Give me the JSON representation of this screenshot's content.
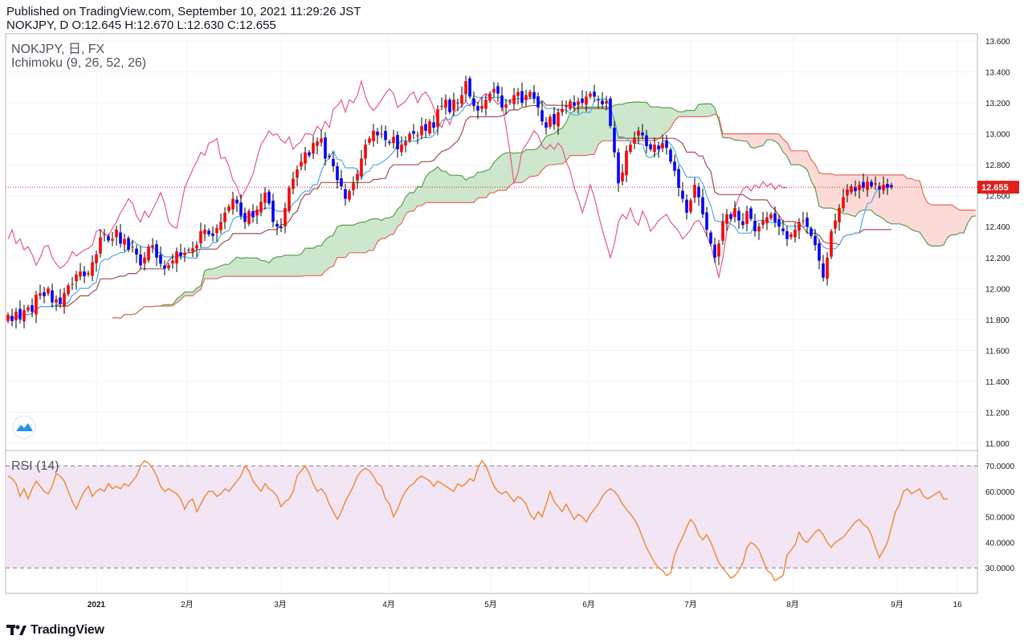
{
  "header": {
    "published": "Published on TradingView.com, September 10, 2021 11:29:26 JST",
    "ohlc": "NOKJPY, D O:12.645 H:12.670 L:12.630 C:12.655"
  },
  "legend": {
    "symbol": "NOKJPY, 日, FX",
    "indicator": "Ichimoku (9, 26, 52, 26)",
    "rsi": "RSI (14)"
  },
  "brand": {
    "name": "TradingView"
  },
  "colors": {
    "up": "#ff0000",
    "down": "#0000ff",
    "tenkan": "#4ea8e8",
    "kijun": "#a0504c",
    "chikou": "#e8578a",
    "spanA": "#57a14a",
    "spanB": "#e96a5e",
    "cloudUp": "#c3e3c3",
    "cloudDown": "#fbd3d0",
    "rsi": "#f08c3c",
    "rsiBand": "#f2e6f5",
    "lastPrice": "#e0201e"
  },
  "chart_data": [
    {
      "type": "candlestick",
      "title": "NOKJPY, 日, FX",
      "subtitle": "Ichimoku (9, 26, 52, 26)",
      "last_price": 12.655,
      "last_price_label": "12.655",
      "ylim": [
        11.0,
        13.6
      ],
      "y_ticks": [
        "13.600",
        "13.400",
        "13.200",
        "13.000",
        "12.800",
        "12.600",
        "12.400",
        "12.200",
        "12.000",
        "11.800",
        "11.600",
        "11.400",
        "11.200",
        "11.000"
      ],
      "x_ticks": [
        "2021",
        "2月",
        "3月",
        "4月",
        "5月",
        "6月",
        "7月",
        "8月",
        "9月",
        "16"
      ],
      "close": [
        11.83,
        11.79,
        11.85,
        11.8,
        11.86,
        11.88,
        11.85,
        11.96,
        11.97,
        11.95,
        12.0,
        11.91,
        11.93,
        11.9,
        11.97,
        12.02,
        12.03,
        12.09,
        12.11,
        12.08,
        12.1,
        12.17,
        12.22,
        12.33,
        12.35,
        12.31,
        12.32,
        12.38,
        12.29,
        12.32,
        12.25,
        12.27,
        12.22,
        12.15,
        12.2,
        12.27,
        12.28,
        12.2,
        12.16,
        12.13,
        12.15,
        12.18,
        12.24,
        12.21,
        12.23,
        12.25,
        12.26,
        12.28,
        12.37,
        12.38,
        12.35,
        12.34,
        12.39,
        12.43,
        12.49,
        12.53,
        12.58,
        12.55,
        12.47,
        12.43,
        12.5,
        12.46,
        12.51,
        12.56,
        12.62,
        12.55,
        12.43,
        12.4,
        12.39,
        12.52,
        12.65,
        12.71,
        12.77,
        12.82,
        12.88,
        12.86,
        12.94,
        12.95,
        12.97,
        12.84,
        12.85,
        12.79,
        12.7,
        12.66,
        12.58,
        12.63,
        12.68,
        12.74,
        12.84,
        12.93,
        12.97,
        13.02,
        12.99,
        13.0,
        12.96,
        12.94,
        12.98,
        12.9,
        12.93,
        12.95,
        13.0,
        13.0,
        12.99,
        13.05,
        13.02,
        13.08,
        13.04,
        13.16,
        13.18,
        13.22,
        13.14,
        13.22,
        13.2,
        13.25,
        13.34,
        13.24,
        13.18,
        13.15,
        13.18,
        13.22,
        13.26,
        13.29,
        13.26,
        13.17,
        13.19,
        13.21,
        13.25,
        13.27,
        13.2,
        13.25,
        13.27,
        13.23,
        13.17,
        13.08,
        13.04,
        13.11,
        13.06,
        13.14,
        13.16,
        13.18,
        13.21,
        13.18,
        13.21,
        13.2,
        13.24,
        13.26,
        13.24,
        13.22,
        13.19,
        13.21,
        13.05,
        12.88,
        12.68,
        12.75,
        12.89,
        12.93,
        12.97,
        13.02,
        12.99,
        12.92,
        12.9,
        12.93,
        12.9,
        12.94,
        12.91,
        12.82,
        12.76,
        12.65,
        12.58,
        12.49,
        12.57,
        12.67,
        12.59,
        12.48,
        12.38,
        12.29,
        12.2,
        12.29,
        12.43,
        12.48,
        12.45,
        12.52,
        12.44,
        12.41,
        12.5,
        12.45,
        12.37,
        12.4,
        12.44,
        12.46,
        12.48,
        12.43,
        12.4,
        12.37,
        12.32,
        12.35,
        12.38,
        12.43,
        12.44,
        12.4,
        12.34,
        12.28,
        12.18,
        12.07,
        12.2,
        12.37,
        12.44,
        12.52,
        12.59,
        12.64,
        12.66,
        12.63,
        12.67,
        12.65,
        12.69,
        12.66,
        12.68,
        12.64,
        12.67,
        12.65,
        12.655
      ],
      "tenkan_sen": "9-period Ichimoku conversion line",
      "kijun_sen": "26-period Ichimoku base line",
      "senkou_span": "26-period forward-shifted cloud"
    },
    {
      "type": "line",
      "title": "RSI (14)",
      "ylim": [
        20,
        76
      ],
      "y_ticks": [
        "70.0000",
        "60.0000",
        "50.0000",
        "40.0000",
        "30.0000"
      ],
      "bands": [
        30,
        70
      ],
      "rsi": [
        66,
        65,
        63,
        58,
        61,
        57,
        61,
        64,
        62,
        60,
        59,
        62,
        67,
        66,
        64,
        60,
        56,
        53,
        57,
        60,
        62,
        58,
        60,
        61,
        60,
        63,
        61,
        62,
        61,
        63,
        62,
        64,
        66,
        70,
        72,
        71,
        69,
        66,
        62,
        60,
        61,
        60,
        59,
        57,
        53,
        56,
        57,
        52,
        55,
        58,
        60,
        60,
        58,
        59,
        61,
        60,
        62,
        64,
        66,
        70,
        68,
        64,
        62,
        60,
        63,
        61,
        60,
        58,
        54,
        56,
        57,
        60,
        66,
        68,
        70,
        67,
        63,
        60,
        61,
        59,
        55,
        52,
        49,
        52,
        56,
        59,
        62,
        66,
        68,
        69,
        68,
        66,
        63,
        62,
        57,
        55,
        50,
        53,
        57,
        60,
        62,
        63,
        65,
        66,
        65,
        64,
        62,
        64,
        63,
        62,
        61,
        60,
        63,
        62,
        63,
        65,
        64,
        69,
        72,
        70,
        66,
        62,
        60,
        59,
        60,
        58,
        56,
        58,
        57,
        55,
        51,
        49,
        52,
        50,
        55,
        60,
        56,
        54,
        52,
        55,
        52,
        49,
        51,
        50,
        48,
        51,
        53,
        55,
        58,
        60,
        61,
        60,
        58,
        55,
        53,
        51,
        49,
        46,
        42,
        38,
        35,
        32,
        30,
        29,
        27,
        28,
        35,
        39,
        42,
        46,
        49,
        47,
        43,
        41,
        43,
        40,
        36,
        32,
        30,
        28,
        26,
        27,
        29,
        32,
        38,
        40,
        39,
        37,
        33,
        29,
        28,
        25,
        26,
        27,
        35,
        37,
        39,
        44,
        41,
        40,
        42,
        44,
        45,
        43,
        40,
        38,
        40,
        41,
        42,
        44,
        46,
        48,
        49,
        47,
        46,
        43,
        38,
        34,
        37,
        40,
        46,
        52,
        55,
        60,
        61,
        59,
        60,
        61,
        58,
        57,
        58,
        59,
        60,
        57,
        57
      ]
    }
  ]
}
